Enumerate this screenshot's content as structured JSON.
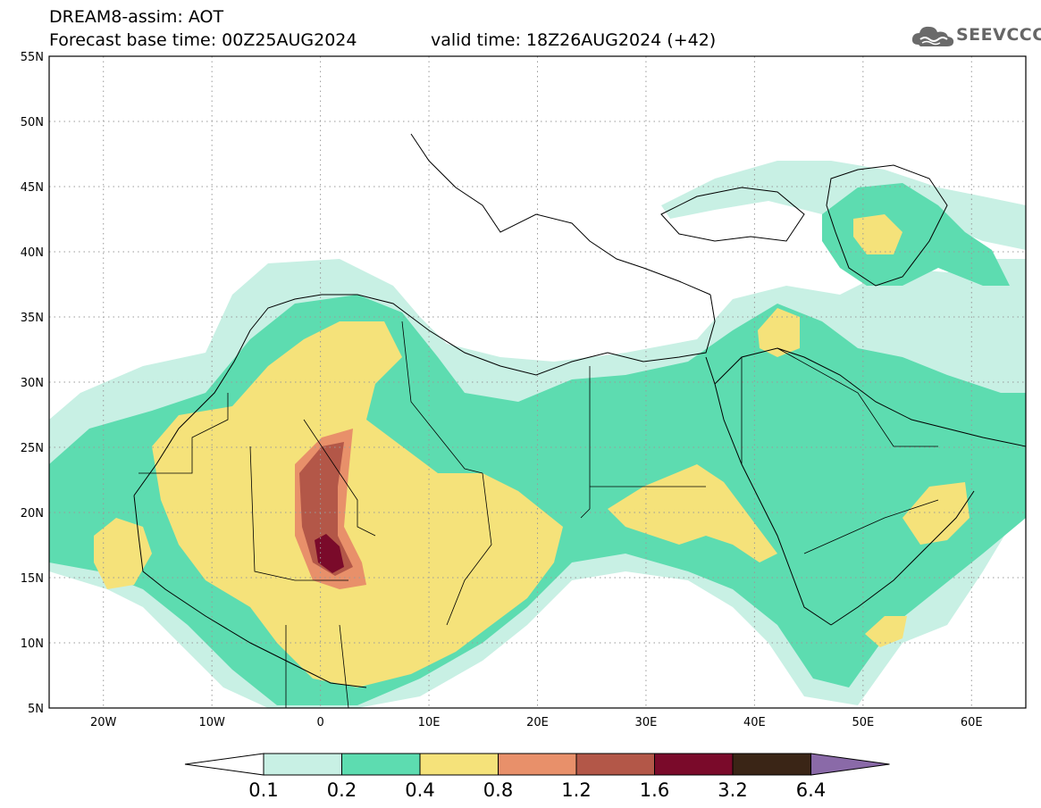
{
  "header": {
    "line1": "DREAM8-assim: AOT",
    "line2_base": "Forecast base time: 00Z25AUG2024",
    "line2_valid": "valid time: 18Z26AUG2024 (+42)"
  },
  "logo": {
    "text": "SEEVCCC",
    "icon": "cloud-icon"
  },
  "map": {
    "lon_range": [
      -25,
      65
    ],
    "lat_range": [
      5,
      55
    ],
    "lon_ticks": [
      "20W",
      "10W",
      "0",
      "10E",
      "20E",
      "30E",
      "40E",
      "50E",
      "60E"
    ],
    "lat_ticks": [
      "5N",
      "10N",
      "15N",
      "20N",
      "25N",
      "30N",
      "35N",
      "40N",
      "45N",
      "50N",
      "55N"
    ],
    "grid": "dotted",
    "variable": "AOT"
  },
  "colorbar": {
    "labels": [
      "0.1",
      "0.2",
      "0.4",
      "0.8",
      "1.2",
      "1.6",
      "3.2",
      "6.4"
    ],
    "colors": [
      "#ffffff",
      "#c8f0e4",
      "#5ddcb0",
      "#f5e27a",
      "#e8906a",
      "#b35748",
      "#7a0a2a",
      "#3a2516",
      "#8a6aa8"
    ]
  }
}
